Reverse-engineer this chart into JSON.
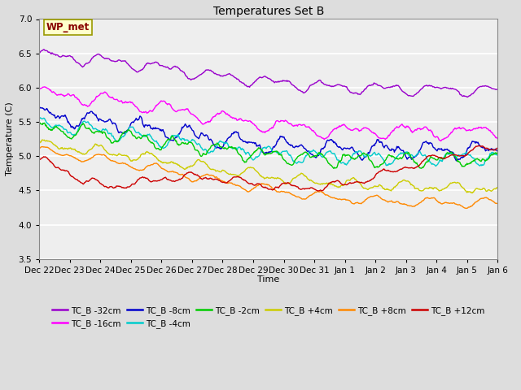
{
  "title": "Temperatures Set B",
  "xlabel": "Time",
  "ylabel": "Temperature (C)",
  "ylim": [
    3.5,
    7.0
  ],
  "yticks": [
    3.5,
    4.0,
    4.5,
    5.0,
    5.5,
    6.0,
    6.5,
    7.0
  ],
  "x_labels": [
    "Dec 22",
    "Dec 23",
    "Dec 24",
    "Dec 25",
    "Dec 26",
    "Dec 27",
    "Dec 28",
    "Dec 29",
    "Dec 30",
    "Dec 31",
    "Jan 1",
    "Jan 2",
    "Jan 3",
    "Jan 4",
    "Jan 5",
    "Jan 6"
  ],
  "series": [
    {
      "label": "TC_B -32cm",
      "color": "#9900cc"
    },
    {
      "label": "TC_B -16cm",
      "color": "#ff00ff"
    },
    {
      "label": "TC_B -8cm",
      "color": "#0000cc"
    },
    {
      "label": "TC_B -4cm",
      "color": "#00cccc"
    },
    {
      "label": "TC_B -2cm",
      "color": "#00cc00"
    },
    {
      "label": "TC_B +4cm",
      "color": "#cccc00"
    },
    {
      "label": "TC_B +8cm",
      "color": "#ff8800"
    },
    {
      "label": "TC_B +12cm",
      "color": "#cc0000"
    }
  ],
  "wp_met_box_color": "#ffffcc",
  "wp_met_text_color": "#880000",
  "background_color": "#dddddd",
  "plot_bg_color": "#eeeeee"
}
